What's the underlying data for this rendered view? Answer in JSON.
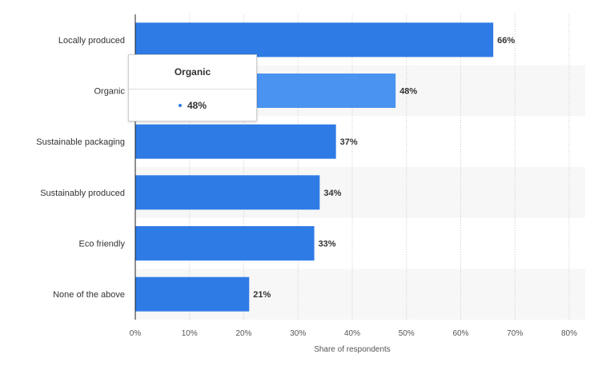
{
  "colors": {
    "bar": "#2f7be6",
    "bar_highlight": "#4a93f0",
    "band": "#f7f7f7",
    "grid": "#c8c8c8",
    "axis": "#222222"
  },
  "chart_data": {
    "type": "bar",
    "orientation": "horizontal",
    "categories": [
      "Locally produced",
      "Organic",
      "Sustainable packaging",
      "Sustainably produced",
      "Eco friendly",
      "None of the above"
    ],
    "values": [
      66,
      48,
      37,
      34,
      33,
      21
    ],
    "value_labels": [
      "66%",
      "48%",
      "37%",
      "34%",
      "33%",
      "21%"
    ],
    "xlabel": "Share of respondents",
    "xlim": [
      0,
      80
    ],
    "xticks": [
      0,
      10,
      20,
      30,
      40,
      50,
      60,
      70,
      80
    ],
    "xtick_labels": [
      "0%",
      "10%",
      "20%",
      "30%",
      "40%",
      "50%",
      "60%",
      "70%",
      "80%"
    ],
    "highlighted_category": "Organic",
    "grid": true
  },
  "tooltip": {
    "title": "Organic",
    "value": "48%"
  }
}
